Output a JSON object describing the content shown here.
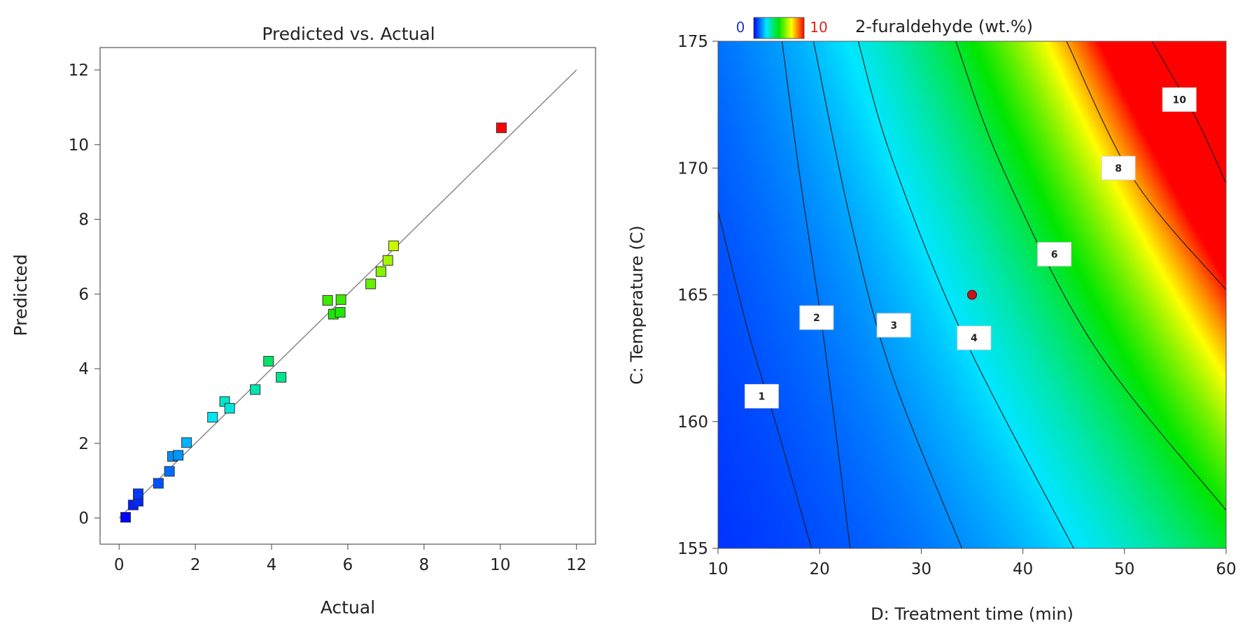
{
  "chart_data": [
    {
      "type": "scatter",
      "title": "Predicted vs. Actual",
      "xlabel": "Actual",
      "ylabel": "Predicted",
      "xlim": [
        -0.5,
        12.5
      ],
      "ylim": [
        -0.7,
        12.6
      ],
      "xticks": [
        0,
        2,
        4,
        6,
        8,
        10,
        12
      ],
      "yticks": [
        0,
        2,
        4,
        6,
        8,
        10,
        12
      ],
      "reference_line": {
        "from": [
          0,
          0
        ],
        "to": [
          12,
          12
        ]
      },
      "color_scale": [
        "#0000ff",
        "#00e6ff",
        "#00e600",
        "#ffff00",
        "#ff0000"
      ],
      "points": [
        {
          "x": 0.17,
          "y": 0.02
        },
        {
          "x": 0.37,
          "y": 0.35
        },
        {
          "x": 0.5,
          "y": 0.45
        },
        {
          "x": 0.5,
          "y": 0.65
        },
        {
          "x": 1.03,
          "y": 0.93
        },
        {
          "x": 1.32,
          "y": 1.25
        },
        {
          "x": 1.4,
          "y": 1.65
        },
        {
          "x": 1.55,
          "y": 1.68
        },
        {
          "x": 1.77,
          "y": 2.02
        },
        {
          "x": 2.45,
          "y": 2.7
        },
        {
          "x": 2.77,
          "y": 3.12
        },
        {
          "x": 2.9,
          "y": 2.94
        },
        {
          "x": 3.57,
          "y": 3.44
        },
        {
          "x": 3.92,
          "y": 4.2
        },
        {
          "x": 4.25,
          "y": 3.77
        },
        {
          "x": 5.47,
          "y": 5.83
        },
        {
          "x": 5.62,
          "y": 5.46
        },
        {
          "x": 5.8,
          "y": 5.51
        },
        {
          "x": 5.82,
          "y": 5.85
        },
        {
          "x": 6.6,
          "y": 6.27
        },
        {
          "x": 6.87,
          "y": 6.6
        },
        {
          "x": 7.05,
          "y": 6.9
        },
        {
          "x": 7.2,
          "y": 7.29
        },
        {
          "x": 10.03,
          "y": 10.45
        }
      ]
    },
    {
      "type": "heatmap",
      "title": "2-furaldehyde (wt.%)",
      "xlabel": "D: Treatment time (min)",
      "ylabel": "C: Temperature (C)",
      "xlim": [
        10,
        60
      ],
      "ylim": [
        155,
        175
      ],
      "xticks": [
        10,
        20,
        30,
        40,
        50,
        60
      ],
      "yticks": [
        155,
        160,
        165,
        170,
        175
      ],
      "color_range": [
        0,
        10
      ],
      "legend_min": "0",
      "legend_max": "10",
      "color_scale": [
        "#0000ff",
        "#00e6ff",
        "#00e600",
        "#ffff00",
        "#ff0000"
      ],
      "contours": [
        {
          "level": "1",
          "points": [
            [
              10,
              168.3
            ],
            [
              13,
              163.5
            ],
            [
              16,
              159.5
            ],
            [
              19.2,
              155
            ]
          ],
          "label_at": [
            14.3,
            161
          ]
        },
        {
          "level": "2",
          "points": [
            [
              16.3,
              175
            ],
            [
              18,
              169.8
            ],
            [
              20.5,
              163
            ],
            [
              23,
              155
            ]
          ],
          "label_at": [
            19.7,
            164.1
          ]
        },
        {
          "level": "3",
          "points": [
            [
              19.4,
              175
            ],
            [
              23,
              168
            ],
            [
              27,
              162
            ],
            [
              34,
              155
            ]
          ],
          "label_at": [
            27.3,
            163.8
          ]
        },
        {
          "level": "4",
          "points": [
            [
              23.8,
              175
            ],
            [
              27,
              170.5
            ],
            [
              34,
              163.5
            ],
            [
              45,
              155
            ]
          ],
          "label_at": [
            35.2,
            163.3
          ]
        },
        {
          "level": "6",
          "points": [
            [
              33.4,
              175
            ],
            [
              38,
              170
            ],
            [
              47,
              163
            ],
            [
              60,
              156.5
            ]
          ],
          "label_at": [
            43.1,
            166.6
          ]
        },
        {
          "level": "8",
          "points": [
            [
              44.3,
              175
            ],
            [
              51,
              169.5
            ],
            [
              60,
              165.2
            ]
          ],
          "label_at": [
            49.4,
            170
          ]
        },
        {
          "level": "10",
          "points": [
            [
              52.7,
              175
            ],
            [
              57,
              172
            ],
            [
              60,
              169.4
            ]
          ],
          "label_at": [
            55.4,
            172.7
          ]
        }
      ],
      "highlight_point": {
        "x": 35,
        "y": 165
      }
    }
  ]
}
